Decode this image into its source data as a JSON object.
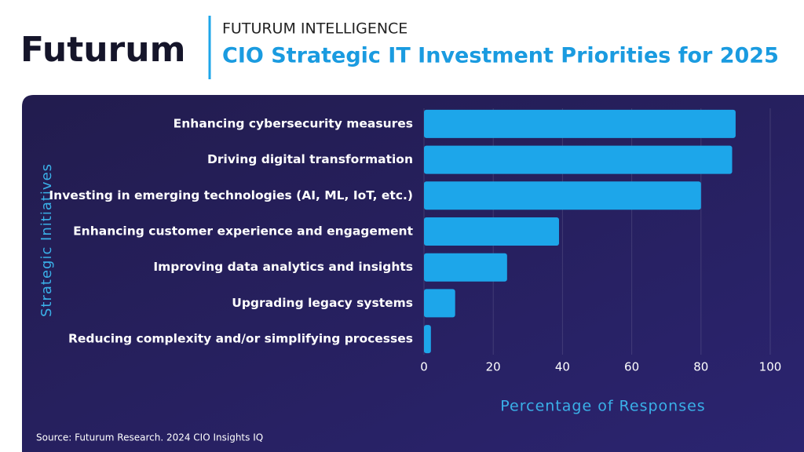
{
  "header": {
    "brand": "Futurum",
    "kicker": "FUTURUM INTELLIGENCE"
  },
  "chart_data": {
    "type": "bar",
    "orientation": "horizontal",
    "title": "CIO Strategic IT Investment Priorities for 2025",
    "categories": [
      "Enhancing cybersecurity measures",
      "Driving digital transformation",
      "Investing in emerging technologies (AI, ML, IoT, etc.)",
      "Enhancing customer experience and engagement",
      "Improving data analytics and insights",
      "Upgrading legacy systems",
      "Reducing complexity and/or simplifying processes"
    ],
    "values": [
      90,
      89,
      80,
      39,
      24,
      9,
      2
    ],
    "color": "#1da6ea",
    "xlim": [
      0,
      100
    ],
    "xticks": [
      0,
      20,
      40,
      60,
      80,
      100
    ],
    "grid": true,
    "x_label": "Percentage of Responses",
    "y_label": "Strategic Initiatives"
  },
  "source": "Source: Futurum Research. 2024 CIO Insights IQ"
}
